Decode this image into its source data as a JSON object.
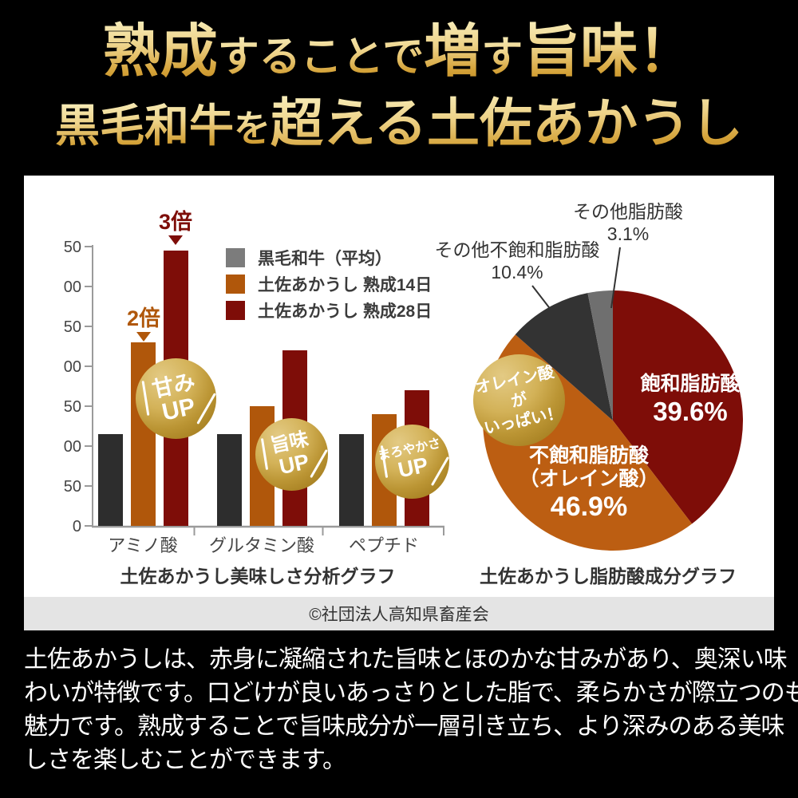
{
  "colors": {
    "page-bg": "#000000",
    "panel-bg": "#ffffff",
    "strip-bg": "#e4e4e4",
    "bar-dark": "#2d2d2d",
    "legend-gray": "#7c7c7c",
    "orange": "#b0570b",
    "dark-red": "#7e0d08",
    "pie-orange": "#bc5e12",
    "pie-dark": "#333333",
    "pie-gray": "#6f6f6f",
    "axis": "#9b9b9b",
    "gold-light": "#e3ca84",
    "gold-mid": "#bb9534",
    "gold-dark": "#9c7518"
  },
  "header": {
    "line1": {
      "seg1": "熟成",
      "seg2": "することで",
      "seg3": "増",
      "seg4": "す",
      "seg5": "旨味！"
    },
    "line2": {
      "seg1": "黒毛和牛",
      "seg2": "を",
      "seg3": "超える土佐あかうし"
    }
  },
  "chart_data": [
    {
      "type": "bar",
      "title": "土佐あかうし美味しさ分析グラフ",
      "categories": [
        "アミノ酸",
        "グルタミン酸",
        "ペプチド"
      ],
      "series": [
        {
          "name": "黒毛和牛（平均）",
          "legend_color": "#7c7c7c",
          "color": "#2d2d2d",
          "values": [
            115,
            115,
            115
          ]
        },
        {
          "name": "土佐あかうし 熟成14日",
          "legend_color": "#b0570b",
          "color": "#b0570b",
          "values": [
            230,
            150,
            140
          ]
        },
        {
          "name": "土佐あかうし 熟成28日",
          "legend_color": "#7e0d08",
          "color": "#7e0d08",
          "values": [
            345,
            220,
            170
          ]
        }
      ],
      "ylim": [
        0,
        350
      ],
      "ytick_step": 50,
      "grid": false,
      "legend_position": "top-right",
      "annotations": [
        {
          "text": "2倍",
          "color": "#b0570b",
          "target": "アミノ酸 熟成14日"
        },
        {
          "text": "3倍",
          "color": "#7e0d08",
          "target": "アミノ酸 熟成28日"
        }
      ]
    },
    {
      "type": "pie",
      "title": "土佐あかうし脂肪酸成分グラフ",
      "start_angle_deg": 0,
      "direction": "clockwise",
      "slices": [
        {
          "name": "飽和脂肪酸",
          "pct": 39.6,
          "pct_label": "39.6%",
          "color": "#7e0d08",
          "label_lines": [
            "飽和脂肪酸"
          ],
          "label_placement": "inside"
        },
        {
          "name": "不飽和脂肪酸（オレイン酸）",
          "pct": 46.9,
          "pct_label": "46.9%",
          "color": "#bc5e12",
          "label_lines": [
            "不飽和脂肪酸",
            "（オレイン酸）"
          ],
          "label_placement": "inside"
        },
        {
          "name": "その他不飽和脂肪酸",
          "pct": 10.4,
          "pct_label": "10.4%",
          "color": "#333333",
          "label_lines": [
            "その他不飽和脂肪酸"
          ],
          "label_placement": "outside"
        },
        {
          "name": "その他脂肪酸",
          "pct": 3.1,
          "pct_label": "3.1%",
          "color": "#6f6f6f",
          "label_lines": [
            "その他脂肪酸"
          ],
          "label_placement": "outside"
        }
      ]
    }
  ],
  "badges": {
    "amami": {
      "line1": "甘み",
      "line2": "UP"
    },
    "umami": {
      "line1": "旨味",
      "line2": "UP"
    },
    "maroyaka": {
      "line1": "まろやかさ",
      "line2": "UP"
    },
    "olein": {
      "line1": "オレイン酸が",
      "line2": "いっぱい！"
    }
  },
  "copyright": "©社団法人高知県畜産会",
  "body_text": {
    "lines": [
      "土佐あかうしは、赤身に凝縮された旨味とほのかな甘みがあり、奥深い味",
      "わいが特徴です。口どけが良いあっさりとした脂で、柔らかさが際立つのも",
      "魅力です。熟成することで旨味成分が一層引き立ち、より深みのある美味",
      "しさを楽しむことができます。"
    ]
  }
}
